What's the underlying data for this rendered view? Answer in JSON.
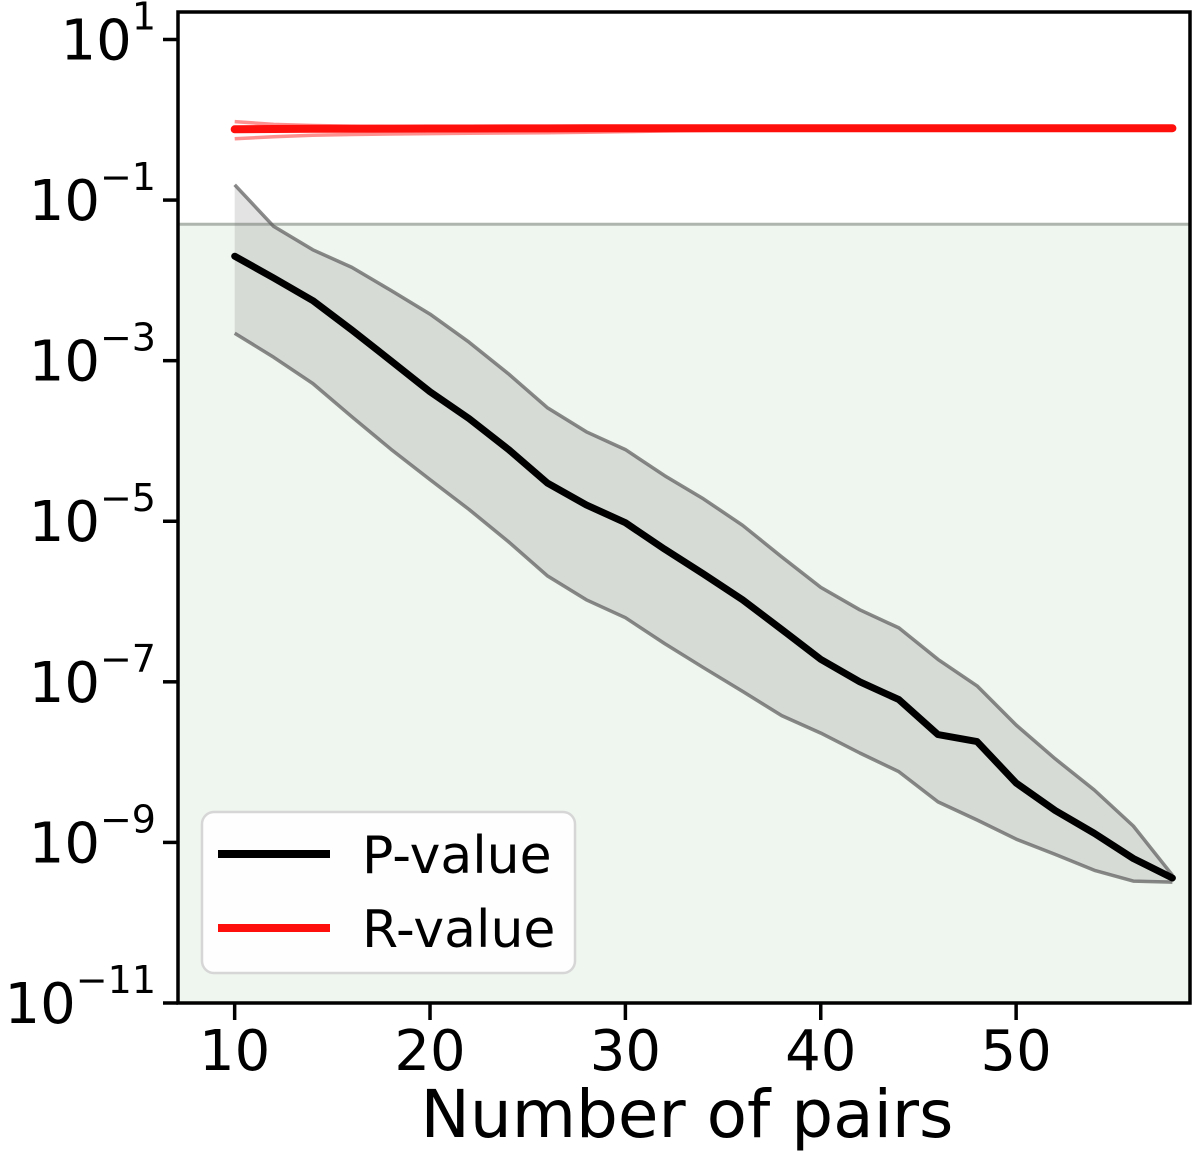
{
  "figure": {
    "background": "#ffffff",
    "plot_background": "#ffffff"
  },
  "chart_data": {
    "type": "line",
    "title": "",
    "xlabel": "Number of pairs",
    "ylabel": "",
    "y_scale": "log",
    "grid": false,
    "xlim": [
      7.1,
      58.9
    ],
    "ylim": [
      1e-11,
      22
    ],
    "x_ticks": [
      10,
      20,
      30,
      40,
      50
    ],
    "y_tick_exponents": [
      1,
      -1,
      -3,
      -5,
      -7,
      -9,
      -11
    ],
    "y_tick_base": "10",
    "legend": {
      "position": "lower-left"
    },
    "threshold": {
      "value": 0.05,
      "line_color": "#aeb4ae",
      "region_below_color": "#eff5ef"
    },
    "x": [
      10,
      12,
      14,
      16,
      18,
      20,
      22,
      24,
      26,
      28,
      30,
      32,
      34,
      36,
      38,
      40,
      42,
      44,
      46,
      48,
      50,
      52,
      54,
      56,
      58
    ],
    "series": [
      {
        "name": "P-value",
        "color": "#000000",
        "line_width": 7,
        "band_fill": "rgba(128,128,128,0.22)",
        "band_edge_color": "rgba(90,90,90,0.70)",
        "band_edge_width": 3.5,
        "values": [
          0.02,
          0.0107,
          0.0056,
          0.0024,
          0.001,
          0.00041,
          0.00019,
          7.9e-05,
          3e-05,
          1.6e-05,
          9.6e-06,
          4.5e-06,
          2.2e-06,
          1.05e-06,
          4.5e-07,
          1.9e-07,
          1e-07,
          6e-08,
          2.2e-08,
          1.8e-08,
          5.5e-09,
          2.5e-09,
          1.3e-09,
          6.3e-10,
          3.6e-10
        ],
        "band_upper": [
          0.155,
          0.047,
          0.024,
          0.0145,
          0.0075,
          0.0038,
          0.0017,
          0.00069,
          0.00026,
          0.00013,
          7.8e-05,
          3.7e-05,
          1.9e-05,
          8.9e-06,
          3.6e-06,
          1.5e-06,
          7.9e-07,
          4.7e-07,
          1.9e-07,
          8.9e-08,
          2.9e-08,
          1.1e-08,
          4.5e-09,
          1.6e-09,
          3.9e-10
        ],
        "band_lower": [
          0.0022,
          0.0011,
          0.00052,
          0.0002,
          7.9e-05,
          3.3e-05,
          1.4e-05,
          5.6e-06,
          2.1e-06,
          1.05e-06,
          6.3e-07,
          3e-07,
          1.5e-07,
          7.6e-08,
          3.8e-08,
          2.3e-08,
          1.3e-08,
          7.6e-09,
          3.2e-09,
          1.9e-09,
          1.1e-09,
          7.1e-10,
          4.5e-10,
          3.3e-10,
          3.2e-10
        ]
      },
      {
        "name": "R-value",
        "color": "#ff0f0c",
        "line_width": 8,
        "band_fill": "none",
        "band_edge_color": "rgba(255,70,70,0.60)",
        "band_edge_width": 3.5,
        "values": [
          0.762,
          0.768,
          0.772,
          0.775,
          0.777,
          0.779,
          0.78,
          0.781,
          0.782,
          0.783,
          0.784,
          0.784,
          0.785,
          0.785,
          0.785,
          0.785,
          0.785,
          0.785,
          0.785,
          0.785,
          0.785,
          0.785,
          0.785,
          0.785,
          0.785
        ],
        "band_upper": [
          0.95,
          0.875,
          0.85,
          0.835,
          0.822,
          0.812,
          0.805,
          0.8,
          0.797,
          0.794,
          0.792,
          0.79,
          0.789,
          0.788,
          0.787,
          0.786,
          0.786,
          0.786,
          0.785,
          0.785,
          0.785,
          0.785,
          0.785,
          0.785,
          0.785
        ],
        "band_lower": [
          0.58,
          0.615,
          0.64,
          0.655,
          0.665,
          0.672,
          0.678,
          0.684,
          0.69,
          0.7,
          0.712,
          0.724,
          0.736,
          0.746,
          0.755,
          0.762,
          0.768,
          0.772,
          0.776,
          0.779,
          0.781,
          0.783,
          0.784,
          0.785,
          0.785
        ]
      }
    ]
  }
}
